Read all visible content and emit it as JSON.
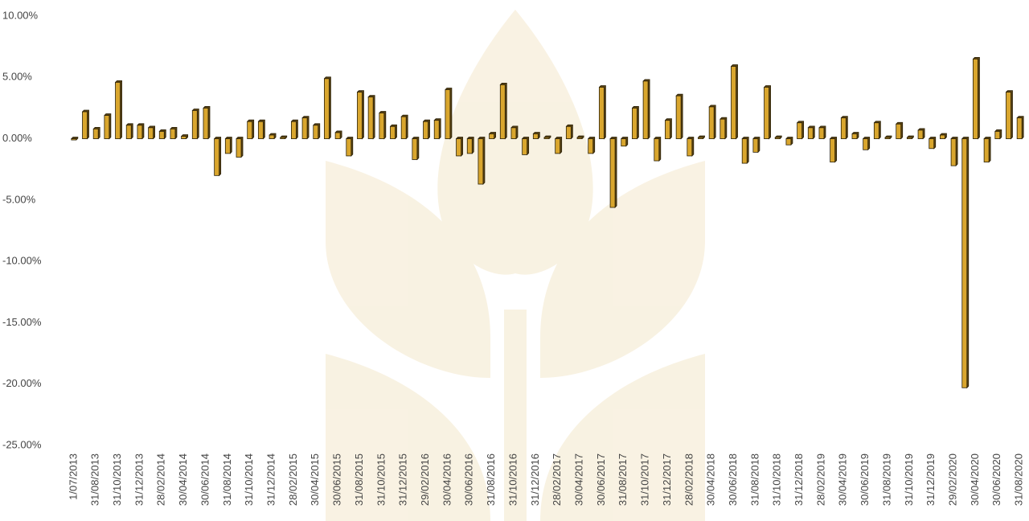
{
  "chart_data": {
    "type": "bar",
    "categories": [
      "1/07/2013",
      null,
      "31/08/2013",
      null,
      "31/10/2013",
      null,
      "31/12/2013",
      null,
      "28/02/2014",
      null,
      "30/04/2014",
      null,
      "30/06/2014",
      null,
      "31/08/2014",
      null,
      "31/10/2014",
      null,
      "31/12/2014",
      null,
      "28/02/2015",
      null,
      "30/04/2015",
      null,
      "30/06/2015",
      null,
      "31/08/2015",
      null,
      "31/10/2015",
      null,
      "31/12/2015",
      null,
      "29/02/2016",
      null,
      "30/04/2016",
      null,
      "30/06/2016",
      null,
      "31/08/2016",
      null,
      "31/10/2016",
      null,
      "31/12/2016",
      null,
      "28/02/2017",
      null,
      "30/04/2017",
      null,
      "30/06/2017",
      null,
      "31/08/2017",
      null,
      "31/10/2017",
      null,
      "31/12/2017",
      null,
      "28/02/2018",
      null,
      "30/04/2018",
      null,
      "30/06/2018",
      null,
      "31/08/2018",
      null,
      "31/10/2018",
      null,
      "31/12/2018",
      null,
      "28/02/2019",
      null,
      "30/04/2019",
      null,
      "30/06/2019",
      null,
      "31/08/2019",
      null,
      "31/10/2019",
      null,
      "31/12/2019",
      null,
      "29/02/2020",
      null,
      "30/04/2020",
      null,
      "30/06/2020",
      null,
      "31/08/2020"
    ],
    "values": [
      0,
      2.2,
      0.8,
      1.9,
      4.6,
      1.1,
      1.1,
      0.9,
      0.6,
      0.8,
      0.2,
      2.3,
      2.5,
      -3.0,
      -1.2,
      -1.5,
      1.4,
      1.4,
      0.3,
      0.1,
      1.4,
      1.7,
      1.1,
      4.9,
      0.5,
      -1.4,
      3.8,
      3.4,
      2.1,
      1.0,
      1.8,
      -1.7,
      1.4,
      1.5,
      4.0,
      -1.4,
      -1.2,
      -3.7,
      0.4,
      4.4,
      0.9,
      -1.3,
      0.4,
      0.1,
      -1.2,
      1.0,
      0.1,
      -1.2,
      4.2,
      -5.6,
      -0.6,
      2.5,
      4.7,
      -1.8,
      1.5,
      3.5,
      -1.4,
      0.1,
      2.6,
      1.6,
      5.9,
      -2.0,
      -1.1,
      4.2,
      0.1,
      -0.5,
      1.3,
      0.9,
      0.9,
      -1.9,
      1.7,
      0.4,
      -0.9,
      1.3,
      0.1,
      1.2,
      0.1,
      0.7,
      -0.8,
      0.3,
      -2.2,
      -20.3,
      6.5,
      -1.9,
      0.6,
      3.8,
      1.7
    ],
    "color": "#d9a62e",
    "ylim": [
      -25,
      10
    ],
    "yticks": [
      {
        "value": -25,
        "label": "-25.00%"
      },
      {
        "value": -20,
        "label": "-20.00%"
      },
      {
        "value": -15,
        "label": "-15.00%"
      },
      {
        "value": -10,
        "label": "-10.00%"
      },
      {
        "value": -5,
        "label": "-5.00%"
      },
      {
        "value": 0,
        "label": "0.00%"
      },
      {
        "value": 5,
        "label": "5.00%"
      },
      {
        "value": 10,
        "label": "10.00%"
      }
    ],
    "grid": false
  }
}
